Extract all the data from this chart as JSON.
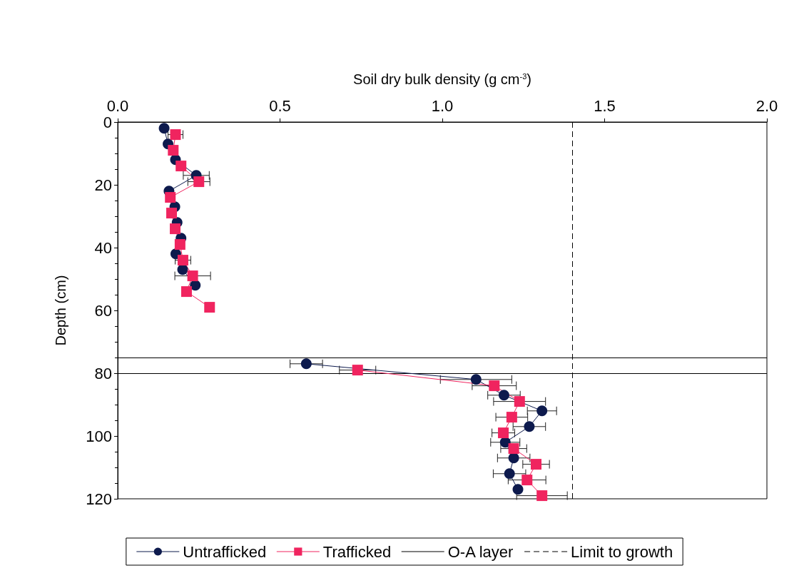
{
  "chart_data": {
    "type": "line",
    "xlabel": "Soil dry bulk density (g cm$^{-3}$)",
    "ylabel": "Depth (cm)",
    "xlim": [
      0,
      2
    ],
    "xticks": [
      {
        "value": 0,
        "label": "0.0"
      },
      {
        "value": 0.5,
        "label": "0.5"
      },
      {
        "value": 1,
        "label": "1.0"
      },
      {
        "value": 1.5,
        "label": "1.5"
      },
      {
        "value": 2,
        "label": "2.0"
      }
    ],
    "ylim": [
      120,
      0
    ],
    "yticks": [
      0,
      20,
      40,
      60,
      80,
      100,
      120
    ],
    "grid": false,
    "legend": "bottom",
    "series": [
      {
        "name": "Untrafficked",
        "color": "#0d1a4d",
        "marker": "circle",
        "x": [
          0.143,
          0.155,
          0.178,
          0.242,
          0.158,
          0.176,
          0.183,
          0.195,
          0.179,
          0.2,
          0.239,
          null,
          0.581,
          1.104,
          1.19,
          1.307,
          1.268,
          1.194,
          1.22,
          1.207,
          1.233
        ],
        "values": [
          2,
          7,
          12,
          17,
          22,
          27,
          32,
          37,
          42,
          47,
          52,
          null,
          77,
          82,
          87,
          92,
          97,
          102,
          107,
          112,
          117
        ],
        "xerrors": [
          null,
          null,
          null,
          0.04,
          null,
          null,
          null,
          null,
          null,
          null,
          null,
          null,
          0.05,
          0.11,
          0.05,
          0.045,
          0.05,
          0.045,
          0.05,
          0.05,
          null
        ]
      },
      {
        "name": "Trafficked",
        "color": "#f0245f",
        "marker": "square",
        "x": [
          0.178,
          0.171,
          0.195,
          0.25,
          0.162,
          0.166,
          0.177,
          0.192,
          0.201,
          0.231,
          0.212,
          0.283,
          null,
          0.739,
          1.16,
          1.238,
          1.214,
          1.188,
          1.22,
          1.289,
          1.261,
          1.307
        ],
        "values": [
          4,
          9,
          14,
          19,
          24,
          29,
          34,
          39,
          44,
          49,
          54,
          59,
          null,
          79,
          84,
          89,
          94,
          99,
          104,
          109,
          114,
          119
        ],
        "xerrors": [
          0.023,
          null,
          null,
          0.034,
          null,
          null,
          null,
          null,
          0.024,
          0.055,
          null,
          null,
          null,
          0.056,
          0.068,
          0.08,
          0.049,
          0.035,
          0.04,
          0.041,
          0.058,
          0.078
        ]
      }
    ],
    "ref_lines": [
      {
        "axis": "y",
        "value": 75,
        "label": "O-A layer",
        "color": "#000000",
        "line_style": "solid"
      },
      {
        "axis": "y",
        "value": 80,
        "color": "#000000",
        "line_style": "solid"
      },
      {
        "axis": "x",
        "value": 1.4,
        "label": "Limit to growth",
        "color": "#000000",
        "line_style": "dashed"
      }
    ]
  }
}
